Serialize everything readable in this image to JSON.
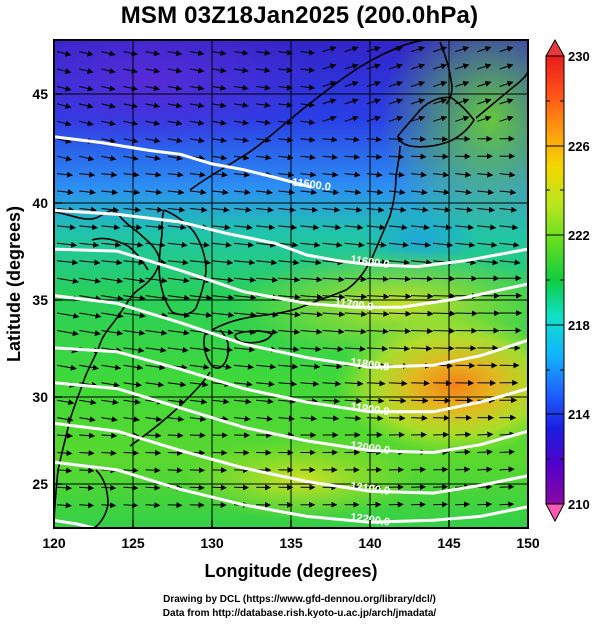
{
  "title": "MSM 03Z18Jan2025 (200.0hPa)",
  "map": {
    "xlabel": "Longitude (degrees)",
    "ylabel": "Latitude  (degrees)",
    "x_ticks": [
      "120",
      "125",
      "130",
      "135",
      "140",
      "145",
      "150"
    ],
    "y_ticks": [
      "25",
      "30",
      "35",
      "40",
      "45"
    ],
    "xlim": [
      120,
      150
    ],
    "ylim": [
      22.4,
      47.6
    ],
    "shading_variable": "temperature (K)",
    "vectors": "wind arrows, westerly flow",
    "contour_color": "#ffffff",
    "contours": [
      {
        "label": "11500.0",
        "points": [
          [
            120,
            42.6
          ],
          [
            123,
            42.3
          ],
          [
            126,
            41.9
          ],
          [
            128,
            41.7
          ],
          [
            130,
            41.2
          ],
          [
            132,
            40.9
          ],
          [
            134,
            40.5
          ],
          [
            136.3,
            40.0
          ]
        ]
      },
      {
        "label": "11600.0",
        "points": [
          [
            120,
            38.8
          ],
          [
            124,
            38.6
          ],
          [
            128,
            38.2
          ],
          [
            131,
            37.6
          ],
          [
            134,
            37.1
          ],
          [
            136,
            36.5
          ],
          [
            138,
            36.2
          ],
          [
            140,
            36.0
          ],
          [
            143,
            35.9
          ],
          [
            146,
            36.2
          ],
          [
            150,
            36.8
          ]
        ]
      },
      {
        "label": "11700.0",
        "points": [
          [
            120,
            36.8
          ],
          [
            124,
            36.7
          ],
          [
            128,
            35.7
          ],
          [
            132,
            34.6
          ],
          [
            136,
            34.0
          ],
          [
            139,
            33.8
          ],
          [
            142,
            33.8
          ],
          [
            146,
            34.3
          ],
          [
            150,
            35.0
          ]
        ]
      },
      {
        "label": "11800.0",
        "points": [
          [
            120,
            34.4
          ],
          [
            124,
            34.0
          ],
          [
            128,
            33.0
          ],
          [
            132,
            31.9
          ],
          [
            136,
            31.2
          ],
          [
            140,
            30.7
          ],
          [
            144,
            30.8
          ],
          [
            147,
            31.3
          ],
          [
            150,
            32.1
          ]
        ]
      },
      {
        "label": "11900.0",
        "points": [
          [
            120,
            31.7
          ],
          [
            124,
            31.5
          ],
          [
            128,
            30.6
          ],
          [
            132,
            29.6
          ],
          [
            136,
            28.9
          ],
          [
            140,
            28.4
          ],
          [
            144,
            28.4
          ],
          [
            147,
            28.9
          ],
          [
            150,
            29.6
          ]
        ]
      },
      {
        "label": "12000.0",
        "points": [
          [
            120,
            29.9
          ],
          [
            124,
            29.6
          ],
          [
            128,
            28.6
          ],
          [
            132,
            27.6
          ],
          [
            136,
            26.9
          ],
          [
            140,
            26.4
          ],
          [
            144,
            26.3
          ],
          [
            147,
            26.7
          ],
          [
            150,
            27.4
          ]
        ]
      },
      {
        "label": "12100.0",
        "points": [
          [
            120,
            27.8
          ],
          [
            124,
            27.4
          ],
          [
            128,
            26.4
          ],
          [
            132,
            25.5
          ],
          [
            136,
            24.8
          ],
          [
            140,
            24.3
          ],
          [
            144,
            24.2
          ],
          [
            147,
            24.6
          ],
          [
            150,
            25.1
          ]
        ]
      },
      {
        "label": "12200.0",
        "points": [
          [
            120,
            25.8
          ],
          [
            124,
            25.4
          ],
          [
            128,
            24.4
          ],
          [
            132,
            23.6
          ],
          [
            136,
            23.0
          ],
          [
            140,
            22.7
          ],
          [
            144,
            22.8
          ],
          [
            147,
            23.0
          ],
          [
            150,
            23.5
          ]
        ]
      },
      {
        "label": "",
        "points": [
          [
            120,
            22.8
          ],
          [
            121.5,
            22.6
          ],
          [
            122.5,
            22.4
          ]
        ]
      }
    ]
  },
  "colorbar": {
    "min": 210,
    "max": 230,
    "tick_labels": [
      "230",
      "226",
      "222",
      "218",
      "214",
      "210"
    ],
    "stops": [
      "#8a0aa3",
      "#5500c8",
      "#1a1de0",
      "#1e64ff",
      "#12b4ff",
      "#10e0c8",
      "#10cc40",
      "#60dd20",
      "#b8e620",
      "#f2d800",
      "#ff9b10",
      "#ff5018",
      "#e81c1c"
    ]
  },
  "credits": {
    "line1": "Drawing by DCL (https://www.gfd-dennou.org/library/dcl/)",
    "line2": "Data from http://database.rish.kyoto-u.ac.jp/arch/jmadata/"
  }
}
